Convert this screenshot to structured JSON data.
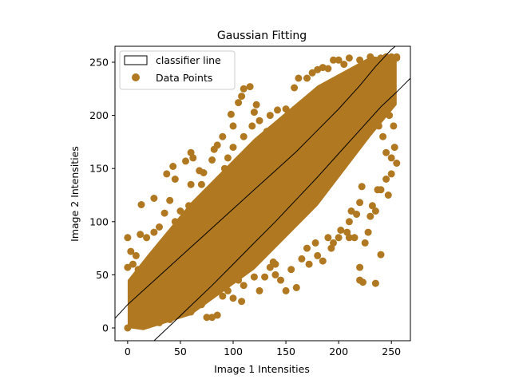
{
  "chart_data": {
    "type": "scatter",
    "title": "Gaussian Fitting",
    "xlabel": "Image 1 Intensities",
    "ylabel": "Image 2 Intensities",
    "xlim": [
      -12,
      268
    ],
    "ylim": [
      -12,
      265
    ],
    "xticks": [
      0,
      50,
      100,
      150,
      200,
      250
    ],
    "yticks": [
      0,
      50,
      100,
      150,
      200,
      250
    ],
    "legend": {
      "placement": "top-left",
      "entries": [
        {
          "label": "classifier line",
          "kind": "box"
        },
        {
          "label": "Data Points",
          "kind": "marker"
        }
      ]
    },
    "series": [
      {
        "name": "Data Points",
        "color": "#b07820",
        "description_cluster": "dense band along diagonal y≈x, from (0,0) to (255,255), width about ±40",
        "points": [
          [
            0,
            0
          ],
          [
            5,
            3
          ],
          [
            10,
            8
          ],
          [
            15,
            12
          ],
          [
            20,
            20
          ],
          [
            25,
            22
          ],
          [
            30,
            28
          ],
          [
            35,
            32
          ],
          [
            40,
            38
          ],
          [
            45,
            44
          ],
          [
            50,
            48
          ],
          [
            55,
            54
          ],
          [
            60,
            58
          ],
          [
            65,
            63
          ],
          [
            70,
            70
          ],
          [
            75,
            74
          ],
          [
            80,
            78
          ],
          [
            85,
            84
          ],
          [
            90,
            90
          ],
          [
            95,
            94
          ],
          [
            100,
            98
          ],
          [
            105,
            104
          ],
          [
            110,
            108
          ],
          [
            115,
            115
          ],
          [
            120,
            118
          ],
          [
            125,
            124
          ],
          [
            130,
            130
          ],
          [
            135,
            134
          ],
          [
            140,
            138
          ],
          [
            145,
            144
          ],
          [
            150,
            150
          ],
          [
            155,
            154
          ],
          [
            160,
            158
          ],
          [
            165,
            164
          ],
          [
            170,
            170
          ],
          [
            175,
            174
          ],
          [
            180,
            178
          ],
          [
            185,
            184
          ],
          [
            190,
            190
          ],
          [
            195,
            194
          ],
          [
            200,
            198
          ],
          [
            205,
            204
          ],
          [
            210,
            210
          ],
          [
            215,
            214
          ],
          [
            220,
            218
          ],
          [
            225,
            224
          ],
          [
            230,
            230
          ],
          [
            235,
            234
          ],
          [
            240,
            238
          ],
          [
            245,
            244
          ],
          [
            250,
            250
          ],
          [
            255,
            254
          ],
          [
            0,
            85
          ],
          [
            3,
            72
          ],
          [
            5,
            60
          ],
          [
            0,
            57
          ],
          [
            12,
            88
          ],
          [
            18,
            85
          ],
          [
            8,
            68
          ],
          [
            10,
            55
          ],
          [
            14,
            40
          ],
          [
            20,
            62
          ],
          [
            13,
            116
          ],
          [
            25,
            122
          ],
          [
            37,
            145
          ],
          [
            43,
            152
          ],
          [
            45,
            140
          ],
          [
            60,
            165
          ],
          [
            62,
            160
          ],
          [
            55,
            157
          ],
          [
            60,
            135
          ],
          [
            68,
            148
          ],
          [
            72,
            146
          ],
          [
            80,
            158
          ],
          [
            82,
            168
          ],
          [
            85,
            172
          ],
          [
            90,
            180
          ],
          [
            98,
            201
          ],
          [
            100,
            190
          ],
          [
            105,
            212
          ],
          [
            108,
            218
          ],
          [
            110,
            225
          ],
          [
            116,
            227
          ],
          [
            120,
            203
          ],
          [
            122,
            210
          ],
          [
            135,
            200
          ],
          [
            142,
            205
          ],
          [
            150,
            206
          ],
          [
            158,
            226
          ],
          [
            162,
            235
          ],
          [
            170,
            235
          ],
          [
            175,
            240
          ],
          [
            180,
            243
          ],
          [
            185,
            245
          ],
          [
            190,
            244
          ],
          [
            195,
            252
          ],
          [
            200,
            252
          ],
          [
            205,
            248
          ],
          [
            210,
            254
          ],
          [
            220,
            252
          ],
          [
            234,
            252
          ],
          [
            240,
            254
          ],
          [
            250,
            255
          ],
          [
            255,
            255
          ],
          [
            245,
            255
          ],
          [
            230,
            255
          ],
          [
            70,
            135
          ],
          [
            78,
            130
          ],
          [
            88,
            140
          ],
          [
            45,
            100
          ],
          [
            40,
            120
          ],
          [
            30,
            95
          ],
          [
            25,
            90
          ],
          [
            35,
            108
          ],
          [
            50,
            110
          ],
          [
            58,
            115
          ],
          [
            65,
            118
          ],
          [
            75,
            125
          ],
          [
            92,
            150
          ],
          [
            95,
            160
          ],
          [
            100,
            170
          ],
          [
            110,
            180
          ],
          [
            118,
            190
          ],
          [
            125,
            195
          ],
          [
            132,
            185
          ],
          [
            15,
            5
          ],
          [
            20,
            3
          ],
          [
            30,
            5
          ],
          [
            40,
            8
          ],
          [
            45,
            12
          ],
          [
            55,
            20
          ],
          [
            60,
            15
          ],
          [
            65,
            25
          ],
          [
            70,
            22
          ],
          [
            75,
            10
          ],
          [
            80,
            10
          ],
          [
            85,
            12
          ],
          [
            90,
            30
          ],
          [
            95,
            35
          ],
          [
            100,
            28
          ],
          [
            105,
            45
          ],
          [
            108,
            25
          ],
          [
            110,
            40
          ],
          [
            120,
            48
          ],
          [
            125,
            35
          ],
          [
            130,
            48
          ],
          [
            135,
            57
          ],
          [
            138,
            62
          ],
          [
            140,
            60
          ],
          [
            145,
            45
          ],
          [
            140,
            50
          ],
          [
            150,
            35
          ],
          [
            160,
            38
          ],
          [
            155,
            55
          ],
          [
            165,
            65
          ],
          [
            170,
            75
          ],
          [
            172,
            60
          ],
          [
            178,
            80
          ],
          [
            180,
            68
          ],
          [
            185,
            63
          ],
          [
            190,
            85
          ],
          [
            193,
            75
          ],
          [
            195,
            80
          ],
          [
            200,
            85
          ],
          [
            202,
            92
          ],
          [
            208,
            90
          ],
          [
            210,
            100
          ],
          [
            212,
            110
          ],
          [
            217,
            107
          ],
          [
            220,
            118
          ],
          [
            222,
            133
          ],
          [
            225,
            80
          ],
          [
            228,
            90
          ],
          [
            230,
            105
          ],
          [
            232,
            115
          ],
          [
            235,
            110
          ],
          [
            237,
            130
          ],
          [
            240,
            130
          ],
          [
            245,
            140
          ],
          [
            247,
            125
          ],
          [
            250,
            145
          ],
          [
            255,
            155
          ],
          [
            253,
            170
          ],
          [
            250,
            160
          ],
          [
            245,
            165
          ],
          [
            242,
            180
          ],
          [
            238,
            190
          ],
          [
            248,
            200
          ],
          [
            252,
            190
          ],
          [
            220,
            57
          ],
          [
            223,
            43
          ],
          [
            235,
            42
          ],
          [
            240,
            69
          ],
          [
            210,
            85
          ],
          [
            215,
            85
          ],
          [
            220,
            45
          ]
        ]
      }
    ],
    "classifier_lines": [
      {
        "name": "upper",
        "points": [
          [
            -12,
            9
          ],
          [
            0,
            22
          ],
          [
            20,
            40
          ],
          [
            40,
            58
          ],
          [
            60,
            76
          ],
          [
            80,
            94
          ],
          [
            100,
            112
          ],
          [
            120,
            130
          ],
          [
            140,
            148
          ],
          [
            160,
            166
          ],
          [
            180,
            186
          ],
          [
            200,
            206
          ],
          [
            220,
            228
          ],
          [
            235,
            246
          ],
          [
            250,
            262
          ],
          [
            255,
            266
          ]
        ]
      },
      {
        "name": "lower",
        "points": [
          [
            25,
            -12
          ],
          [
            40,
            2
          ],
          [
            60,
            21
          ],
          [
            80,
            40
          ],
          [
            100,
            60
          ],
          [
            120,
            80
          ],
          [
            140,
            100
          ],
          [
            160,
            121
          ],
          [
            180,
            142
          ],
          [
            200,
            164
          ],
          [
            220,
            186
          ],
          [
            240,
            208
          ],
          [
            255,
            222
          ],
          [
            268,
            235
          ]
        ]
      }
    ]
  }
}
